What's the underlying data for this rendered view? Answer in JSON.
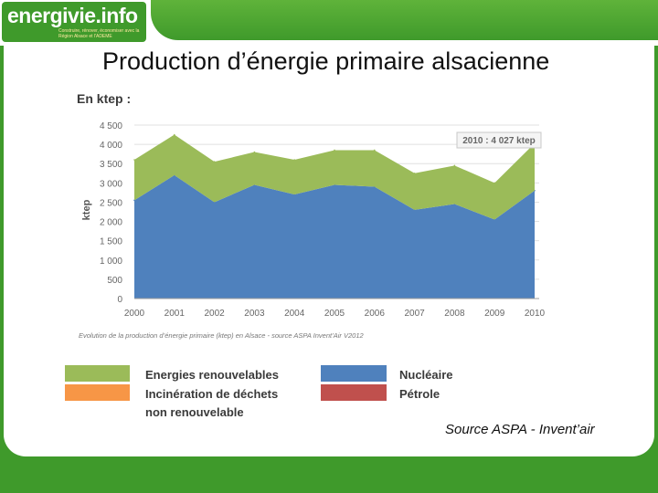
{
  "header": {
    "logo_text": "energivie.info",
    "logo_tagline": "Construire, rénover, économiser avec la Région Alsace et l'ADEME"
  },
  "slide": {
    "title": "Production d’énergie primaire alsacienne",
    "unit_label": "En ktep :",
    "source": "Source ASPA - Invent’air"
  },
  "chart_data": {
    "type": "area",
    "stacked": true,
    "ylabel": "ktep",
    "x": [
      "2000",
      "2001",
      "2002",
      "2003",
      "2004",
      "2005",
      "2006",
      "2007",
      "2008",
      "2009",
      "2010"
    ],
    "yticks": [
      "0",
      "500",
      "1 000",
      "1 500",
      "2 000",
      "2 500",
      "3 000",
      "3 500",
      "4 000",
      "4 500"
    ],
    "ylim": [
      0,
      4500
    ],
    "series": [
      {
        "name": "Nucléaire",
        "color": "#4f81bd",
        "values": [
          2550,
          3200,
          2500,
          2950,
          2700,
          2950,
          2900,
          2300,
          2450,
          2050,
          2800
        ]
      },
      {
        "name": "Energies renouvelables",
        "color": "#9bbb59",
        "values": [
          1050,
          1050,
          1050,
          850,
          900,
          900,
          950,
          950,
          1000,
          950,
          1227
        ]
      }
    ],
    "annotation": "2010 : 4 027 ktep",
    "caption": "Evolution de la production d’énergie primaire (ktep) en Alsace - source ASPA Invent’Air V2012",
    "grid": true
  },
  "legend": {
    "items": [
      {
        "label": "Energies renouvelables",
        "color": "#9bbb59"
      },
      {
        "label": "Incinération de déchets",
        "color": "#f79646"
      },
      {
        "label": "non renouvelable",
        "color": ""
      },
      {
        "label": "Nucléaire",
        "color": "#4f81bd"
      },
      {
        "label": "Pétrole",
        "color": "#c0504d"
      }
    ]
  }
}
